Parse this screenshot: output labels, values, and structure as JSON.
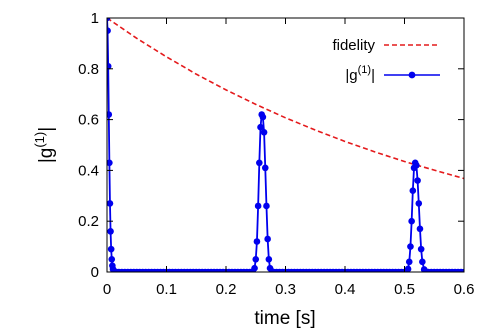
{
  "chart_data": {
    "type": "line",
    "title": "",
    "xlabel": "time [s]",
    "ylabel_base": "|g",
    "ylabel_sup": "(1)",
    "ylabel_end": "|",
    "xlim": [
      0,
      0.6
    ],
    "ylim": [
      0,
      1
    ],
    "x_ticks": [
      {
        "value": 0,
        "label": "0"
      },
      {
        "value": 0.1,
        "label": "0.1"
      },
      {
        "value": 0.2,
        "label": "0.2"
      },
      {
        "value": 0.3,
        "label": "0.3"
      },
      {
        "value": 0.4,
        "label": "0.4"
      },
      {
        "value": 0.5,
        "label": "0.5"
      },
      {
        "value": 0.6,
        "label": "0.6"
      }
    ],
    "y_ticks": [
      {
        "value": 0,
        "label": "0"
      },
      {
        "value": 0.2,
        "label": "0.2"
      },
      {
        "value": 0.4,
        "label": "0.4"
      },
      {
        "value": 0.6,
        "label": "0.6"
      },
      {
        "value": 0.8,
        "label": "0.8"
      },
      {
        "value": 1,
        "label": "1"
      }
    ],
    "grid": false,
    "legend_position": "top-right",
    "series": [
      {
        "name": "fidelity",
        "style": "dashed",
        "color": "#e41a1c",
        "x": [
          0,
          0.05,
          0.1,
          0.15,
          0.2,
          0.25,
          0.3,
          0.35,
          0.4,
          0.45,
          0.5,
          0.55,
          0.6
        ],
        "y": [
          1.0,
          0.92,
          0.847,
          0.779,
          0.717,
          0.66,
          0.607,
          0.559,
          0.514,
          0.473,
          0.435,
          0.401,
          0.368
        ]
      },
      {
        "name_base": "|g",
        "name_sup": "(1)",
        "name_end": "|",
        "style": "line-points",
        "color": "#0000ee",
        "x": [
          0,
          0.001,
          0.002,
          0.003,
          0.004,
          0.005,
          0.006,
          0.007,
          0.008,
          0.009,
          0.01,
          0.011,
          0.012,
          0.014,
          0.016,
          0.02,
          0.025,
          0.03,
          0.035,
          0.04,
          0.045,
          0.05,
          0.055,
          0.06,
          0.065,
          0.07,
          0.075,
          0.08,
          0.085,
          0.09,
          0.095,
          0.1,
          0.105,
          0.11,
          0.115,
          0.12,
          0.125,
          0.13,
          0.135,
          0.14,
          0.145,
          0.15,
          0.155,
          0.16,
          0.165,
          0.17,
          0.175,
          0.18,
          0.185,
          0.19,
          0.195,
          0.2,
          0.205,
          0.21,
          0.215,
          0.22,
          0.225,
          0.23,
          0.235,
          0.24,
          0.245,
          0.248,
          0.25,
          0.252,
          0.254,
          0.256,
          0.258,
          0.26,
          0.262,
          0.264,
          0.266,
          0.268,
          0.27,
          0.272,
          0.274,
          0.277,
          0.28,
          0.285,
          0.29,
          0.295,
          0.3,
          0.305,
          0.31,
          0.315,
          0.32,
          0.325,
          0.33,
          0.335,
          0.34,
          0.345,
          0.35,
          0.355,
          0.36,
          0.365,
          0.37,
          0.375,
          0.38,
          0.385,
          0.39,
          0.395,
          0.4,
          0.405,
          0.41,
          0.415,
          0.42,
          0.425,
          0.43,
          0.435,
          0.44,
          0.445,
          0.45,
          0.455,
          0.46,
          0.465,
          0.47,
          0.475,
          0.48,
          0.485,
          0.49,
          0.495,
          0.5,
          0.503,
          0.506,
          0.508,
          0.51,
          0.512,
          0.514,
          0.516,
          0.518,
          0.52,
          0.522,
          0.524,
          0.526,
          0.528,
          0.53,
          0.533,
          0.536,
          0.54,
          0.545,
          0.55,
          0.555,
          0.56,
          0.565,
          0.57,
          0.575,
          0.58,
          0.585,
          0.59,
          0.595,
          0.6
        ],
        "y": [
          1.0,
          0.95,
          0.81,
          0.62,
          0.43,
          0.27,
          0.16,
          0.09,
          0.05,
          0.025,
          0.012,
          0.006,
          0.003,
          0.001,
          0,
          0,
          0,
          0,
          0,
          0,
          0,
          0,
          0,
          0,
          0,
          0,
          0,
          0,
          0,
          0,
          0,
          0,
          0,
          0,
          0,
          0,
          0,
          0,
          0,
          0,
          0,
          0,
          0,
          0,
          0,
          0,
          0,
          0,
          0,
          0,
          0,
          0,
          0,
          0,
          0,
          0,
          0,
          0,
          0,
          0,
          0.002,
          0.015,
          0.05,
          0.12,
          0.26,
          0.43,
          0.57,
          0.62,
          0.61,
          0.55,
          0.41,
          0.26,
          0.13,
          0.05,
          0.015,
          0.003,
          0,
          0,
          0,
          0,
          0,
          0,
          0,
          0,
          0,
          0,
          0,
          0,
          0,
          0,
          0,
          0,
          0,
          0,
          0,
          0,
          0,
          0,
          0,
          0,
          0,
          0,
          0,
          0,
          0,
          0,
          0,
          0,
          0,
          0,
          0,
          0,
          0,
          0,
          0,
          0,
          0,
          0,
          0,
          0,
          0,
          0.002,
          0.012,
          0.04,
          0.1,
          0.2,
          0.32,
          0.41,
          0.43,
          0.42,
          0.36,
          0.27,
          0.17,
          0.09,
          0.04,
          0.01,
          0.002,
          0,
          0,
          0,
          0,
          0,
          0,
          0,
          0,
          0,
          0,
          0,
          0,
          0
        ]
      }
    ]
  }
}
